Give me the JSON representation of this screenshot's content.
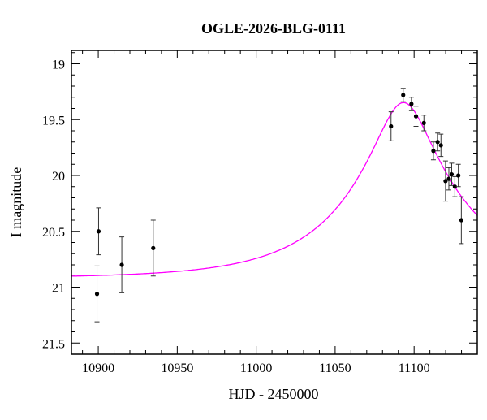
{
  "chart_data": {
    "type": "scatter",
    "title": "OGLE-2026-BLG-0111",
    "xlabel": "HJD - 2450000",
    "ylabel": "I magnitude",
    "xlim": [
      10883,
      11140
    ],
    "ylim": [
      21.6,
      18.88
    ],
    "y_inverted": true,
    "xticks": [
      10900,
      10950,
      11000,
      11050,
      11100
    ],
    "xtick_labels": [
      "10900",
      "10950",
      "11000",
      "11050",
      "11100"
    ],
    "yticks": [
      19,
      19.5,
      20,
      20.5,
      21,
      21.5
    ],
    "ytick_labels": [
      "19",
      "19.5",
      "20",
      "20.5",
      "21",
      "21.5"
    ],
    "x_minor_step": 10,
    "y_minor_step": 0.1,
    "grid": false,
    "colors": {
      "data": "#000000",
      "errorbar": "#333333",
      "model": "#ff00ff"
    },
    "series": [
      {
        "name": "data",
        "x": [
          10899.2,
          10900.2,
          10914.9,
          10934.8,
          11085.4,
          11093.1,
          11098.3,
          11101.2,
          11106.2,
          11112.2,
          11114.9,
          11117.0,
          11119.9,
          11122.0,
          11123.8,
          11125.8,
          11128.0,
          11129.9
        ],
        "y": [
          21.06,
          20.5,
          20.8,
          20.65,
          19.56,
          19.28,
          19.36,
          19.47,
          19.53,
          19.78,
          19.7,
          19.73,
          20.05,
          20.03,
          19.99,
          20.1,
          20.0,
          20.4
        ],
        "yerr": [
          0.25,
          0.21,
          0.25,
          0.25,
          0.13,
          0.06,
          0.06,
          0.09,
          0.07,
          0.08,
          0.08,
          0.1,
          0.18,
          0.1,
          0.1,
          0.09,
          0.1,
          0.21
        ]
      },
      {
        "name": "model",
        "kind": "point-lens",
        "t0": 11093.3,
        "u0": 0.24,
        "tE": 71,
        "baseline": 20.92
      }
    ]
  }
}
